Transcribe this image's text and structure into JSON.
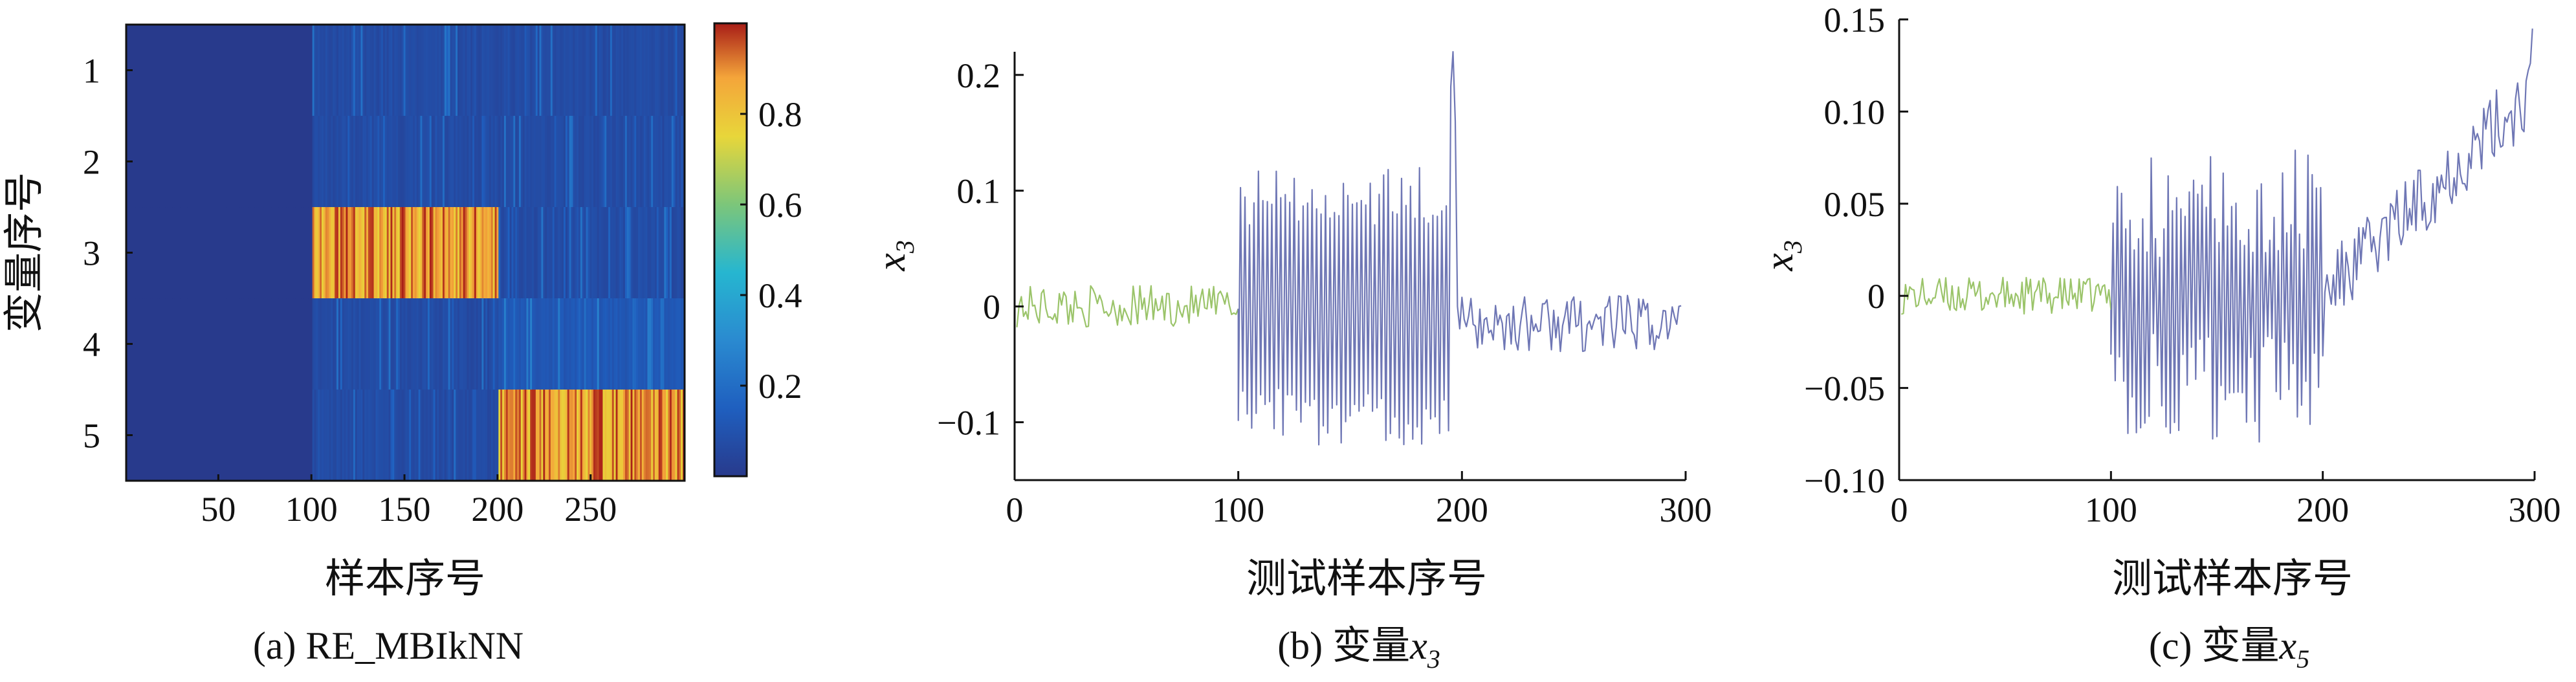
{
  "charts": {
    "a": {
      "caption": "(a) RE_MBIkNN",
      "xlabel": "样本序号",
      "ylabel": "变量序号",
      "x_ticks": [
        "50",
        "100",
        "150",
        "200",
        "250"
      ],
      "y_ticks": [
        "1",
        "2",
        "3",
        "4",
        "5"
      ],
      "colorbar_ticks": [
        "0.2",
        "0.4",
        "0.6",
        "0.8"
      ]
    },
    "b": {
      "caption": "(b) 变量",
      "caption_var": "x",
      "caption_sub": "3",
      "xlabel": "测试样本序号",
      "ylabel": "x",
      "ylabel_sub": "3",
      "x_ticks": [
        "0",
        "100",
        "200",
        "300"
      ],
      "y_ticks": [
        "0.2",
        "0.1",
        "0",
        "−0.1"
      ]
    },
    "c": {
      "caption": "(c) 变量",
      "caption_var": "x",
      "caption_sub": "5",
      "xlabel": "测试样本序号",
      "ylabel": "x",
      "ylabel_sub": "3",
      "x_ticks": [
        "0",
        "100",
        "200",
        "300"
      ],
      "y_ticks": [
        "0.15",
        "0.10",
        "0.05",
        "0",
        "−0.05",
        "−0.10"
      ]
    }
  },
  "chart_data": [
    {
      "type": "heatmap",
      "title": "(a) RE_MBIkNN",
      "xlabel": "样本序号",
      "ylabel": "变量序号",
      "xlim": [
        1,
        300
      ],
      "rows": [
        "1",
        "2",
        "3",
        "4",
        "5"
      ],
      "clim": [
        0,
        1
      ],
      "colorbar_ticks": [
        0.2,
        0.4,
        0.6,
        0.8
      ],
      "colormap": "parula",
      "segments": [
        {
          "x_range": [
            1,
            100
          ],
          "rows": [
            0.0,
            0.0,
            0.0,
            0.0,
            0.0
          ]
        },
        {
          "x_range": [
            101,
            200
          ],
          "rows": [
            0.05,
            0.05,
            0.9,
            0.05,
            0.05
          ]
        },
        {
          "x_range": [
            201,
            300
          ],
          "rows": [
            0.05,
            0.05,
            0.05,
            0.1,
            0.9
          ]
        }
      ],
      "colors": {
        "low": "#283a8c",
        "mid": "#26b6d0",
        "high": "#f4e43c",
        "max": "#a81d17"
      }
    },
    {
      "type": "line",
      "title": "(b) 变量x3",
      "xlabel": "测试样本序号",
      "ylabel": "x3",
      "xlim": [
        0,
        300
      ],
      "ylim": [
        -0.15,
        0.22
      ],
      "x_ticks": [
        0,
        100,
        200,
        300
      ],
      "y_ticks": [
        -0.1,
        0,
        0.1,
        0.2
      ],
      "segments": [
        {
          "x_range": [
            1,
            100
          ],
          "approx_values": "noise around 0, amplitude ±0.02",
          "color": "#9bc46a"
        },
        {
          "x_range": [
            100,
            194
          ],
          "approx_values": "oscillation between about −0.12 and 0.12",
          "color": "#6f77b5"
        },
        {
          "x_range": [
            194,
            198
          ],
          "approx_values": "spike up to about 0.22",
          "color": "#6f77b5"
        },
        {
          "x_range": [
            198,
            300
          ],
          "approx_values": "noise around −0.015, amplitude ±0.03",
          "color": "#6f77b5"
        }
      ]
    },
    {
      "type": "line",
      "title": "(c) 变量x5",
      "xlabel": "测试样本序号",
      "ylabel": "x3",
      "xlim": [
        0,
        300
      ],
      "ylim": [
        -0.1,
        0.15
      ],
      "x_ticks": [
        0,
        100,
        200,
        300
      ],
      "y_ticks": [
        -0.1,
        -0.05,
        0,
        0.05,
        0.1,
        0.15
      ],
      "segments": [
        {
          "x_range": [
            1,
            100
          ],
          "approx_values": "noise around 0, amplitude ±0.01",
          "color": "#9bc46a"
        },
        {
          "x_range": [
            100,
            200
          ],
          "approx_values": "oscillation between about −0.075 and 0.08",
          "color": "#6f77b5"
        },
        {
          "x_range": [
            200,
            300
          ],
          "approx_values": "upward drift from 0 to about 0.14",
          "color": "#6f77b5"
        }
      ]
    }
  ]
}
